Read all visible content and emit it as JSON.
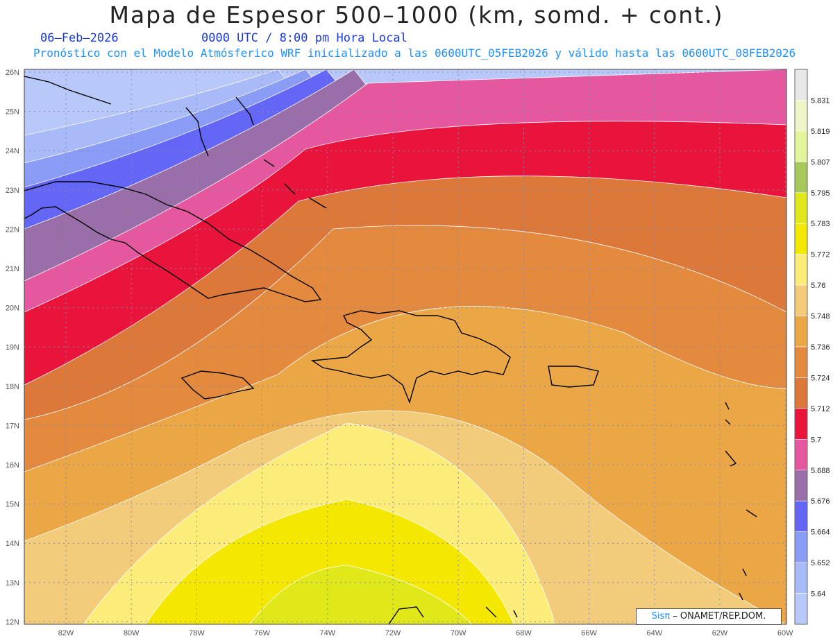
{
  "header": {
    "title": "Mapa de Espesor 500–1000 (km, somd. + cont.)",
    "date": "06–Feb–2026",
    "time_label": "0000 UTC / 8:00 pm Hora Local",
    "model_info": "Pronóstico con el Modelo Atmósferico WRF inicializado a las 0600UTC_05FEB2026 y válido hasta las  0600UTC_08FEB2026"
  },
  "map": {
    "lat_labels": [
      "26N",
      "25N",
      "24N",
      "23N",
      "22N",
      "21N",
      "20N",
      "19N",
      "18N",
      "17N",
      "16N",
      "15N",
      "14N",
      "13N",
      "12N"
    ],
    "lon_labels": [
      "82W",
      "80W",
      "78W",
      "76W",
      "74W",
      "72W",
      "70W",
      "68W",
      "66W",
      "64W",
      "62W",
      "60W"
    ],
    "legend_levels": [
      "5.831",
      "5.819",
      "5.807",
      "5.795",
      "5.783",
      "5.772",
      "5.76",
      "5.748",
      "5.736",
      "5.724",
      "5.712",
      "5.7",
      "5.688",
      "5.676",
      "5.664",
      "5.652",
      "5.64"
    ],
    "legend_colors": [
      "#e8e8e8",
      "#f0f5c8",
      "#e3f59a",
      "#a6c85a",
      "#e0e81a",
      "#f5e800",
      "#fcec7a",
      "#f2cc7a",
      "#eba646",
      "#e38a3e",
      "#dc783a",
      "#e8143c",
      "#e558a0",
      "#9a6ea8",
      "#6466f5",
      "#8a9cf5",
      "#a8baf8",
      "#b8c8f8"
    ],
    "contour_band_colors": [
      "#b8c8f8",
      "#a8baf8",
      "#8a9cf5",
      "#6466f5",
      "#9a6ea8",
      "#e558a0",
      "#e8143c",
      "#dc783a",
      "#e38a3e",
      "#eba646",
      "#f2cc7a",
      "#fcec7a",
      "#f5e800",
      "#e0e81a"
    ],
    "credit_sis": "Sisπ",
    "credit_text": "– ONAMET/REP.DOM."
  }
}
